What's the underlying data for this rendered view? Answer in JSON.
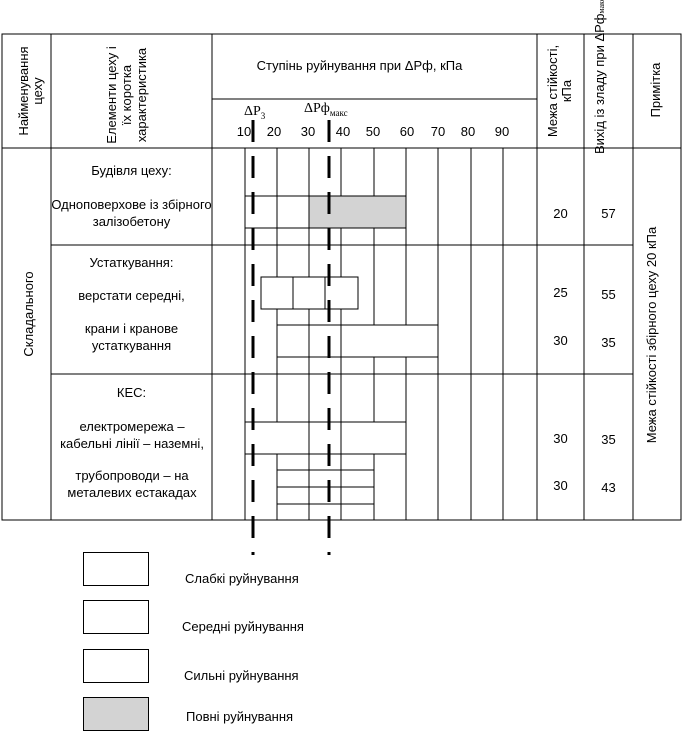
{
  "table": {
    "headers": {
      "workshop": "Найменування цеху",
      "elements": "Елементи цеху і їх коротка характеристика",
      "damage_degree": "Ступінь руйнування при ΔРф, кПа",
      "limit": "Межа стійкості, кПа",
      "failure": "Вихід із зладу при ΔРф",
      "failure_sub": "макс",
      "note": "Примітка"
    },
    "scale": {
      "ticks": [
        "10",
        "20",
        "30",
        "40",
        "50",
        "60",
        "70",
        "80",
        "90"
      ],
      "marker_p3": "ΔР",
      "marker_p3_sub": "3",
      "marker_pf": "ΔРф",
      "marker_pf_sub": "макс"
    },
    "workshop_name": "Складального",
    "note_text": "Межа стійкості збірного цеху 20 кПа",
    "sections": [
      {
        "title": "Будівля цеху:",
        "items": [
          {
            "text": "Одноповерхове із збірного залізобетону",
            "limit": "20",
            "failure": "57"
          }
        ]
      },
      {
        "title": "Устаткування:",
        "items": [
          {
            "text": "верстати середні,",
            "limit": "25",
            "failure": "55"
          },
          {
            "text": "крани і кранове устаткування",
            "limit": "30",
            "failure": "35"
          }
        ]
      },
      {
        "title": "КЕС:",
        "items": [
          {
            "text": "електромережа – кабельні лінії – наземні,",
            "limit": "30",
            "failure": "35"
          },
          {
            "text": "трубопроводи – на металевих естакадах",
            "limit": "30",
            "failure": "43"
          }
        ]
      }
    ]
  },
  "legend": [
    {
      "label": "Слабкі руйнування",
      "fill": "#ffffff"
    },
    {
      "label": "Середні руйнування",
      "fill": "#ffffff"
    },
    {
      "label": "Сильні руйнування",
      "fill": "#ffffff"
    },
    {
      "label": "Повні руйнування",
      "fill": "#d3d3d3"
    }
  ]
}
